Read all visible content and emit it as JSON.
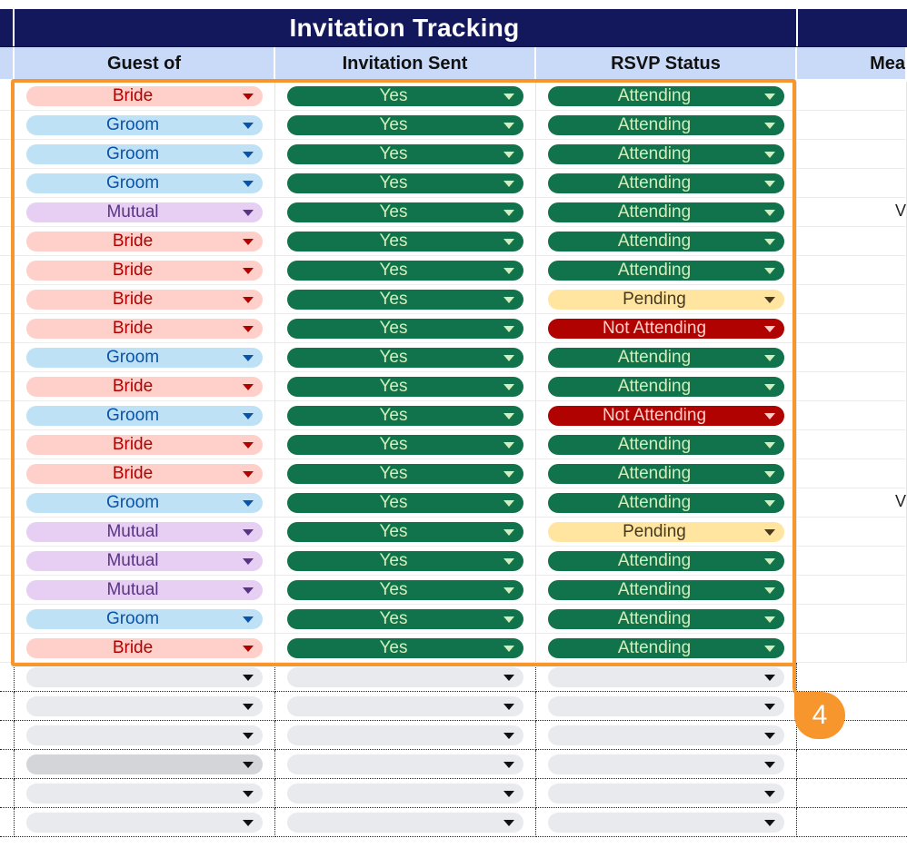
{
  "title": "Invitation Tracking",
  "columns": {
    "guest_of": "Guest of",
    "invitation_sent": "Invitation Sent",
    "rsvp_status": "RSVP Status",
    "meal": "Mea"
  },
  "rows": [
    {
      "guest_of": "Bride",
      "guest_kind": "bride",
      "sent": "Yes",
      "rsvp": "Attending",
      "rsvp_kind": "attending",
      "meal_mark": ""
    },
    {
      "guest_of": "Groom",
      "guest_kind": "groom",
      "sent": "Yes",
      "rsvp": "Attending",
      "rsvp_kind": "attending",
      "meal_mark": ""
    },
    {
      "guest_of": "Groom",
      "guest_kind": "groom",
      "sent": "Yes",
      "rsvp": "Attending",
      "rsvp_kind": "attending",
      "meal_mark": ""
    },
    {
      "guest_of": "Groom",
      "guest_kind": "groom",
      "sent": "Yes",
      "rsvp": "Attending",
      "rsvp_kind": "attending",
      "meal_mark": ""
    },
    {
      "guest_of": "Mutual",
      "guest_kind": "mutual",
      "sent": "Yes",
      "rsvp": "Attending",
      "rsvp_kind": "attending",
      "meal_mark": "V"
    },
    {
      "guest_of": "Bride",
      "guest_kind": "bride",
      "sent": "Yes",
      "rsvp": "Attending",
      "rsvp_kind": "attending",
      "meal_mark": ""
    },
    {
      "guest_of": "Bride",
      "guest_kind": "bride",
      "sent": "Yes",
      "rsvp": "Attending",
      "rsvp_kind": "attending",
      "meal_mark": ""
    },
    {
      "guest_of": "Bride",
      "guest_kind": "bride",
      "sent": "Yes",
      "rsvp": "Pending",
      "rsvp_kind": "pending",
      "meal_mark": ""
    },
    {
      "guest_of": "Bride",
      "guest_kind": "bride",
      "sent": "Yes",
      "rsvp": "Not Attending",
      "rsvp_kind": "notattending",
      "meal_mark": ""
    },
    {
      "guest_of": "Groom",
      "guest_kind": "groom",
      "sent": "Yes",
      "rsvp": "Attending",
      "rsvp_kind": "attending",
      "meal_mark": ""
    },
    {
      "guest_of": "Bride",
      "guest_kind": "bride",
      "sent": "Yes",
      "rsvp": "Attending",
      "rsvp_kind": "attending",
      "meal_mark": ""
    },
    {
      "guest_of": "Groom",
      "guest_kind": "groom",
      "sent": "Yes",
      "rsvp": "Not Attending",
      "rsvp_kind": "notattending",
      "meal_mark": ""
    },
    {
      "guest_of": "Bride",
      "guest_kind": "bride",
      "sent": "Yes",
      "rsvp": "Attending",
      "rsvp_kind": "attending",
      "meal_mark": ""
    },
    {
      "guest_of": "Bride",
      "guest_kind": "bride",
      "sent": "Yes",
      "rsvp": "Attending",
      "rsvp_kind": "attending",
      "meal_mark": ""
    },
    {
      "guest_of": "Groom",
      "guest_kind": "groom",
      "sent": "Yes",
      "rsvp": "Attending",
      "rsvp_kind": "attending",
      "meal_mark": "V"
    },
    {
      "guest_of": "Mutual",
      "guest_kind": "mutual",
      "sent": "Yes",
      "rsvp": "Pending",
      "rsvp_kind": "pending",
      "meal_mark": ""
    },
    {
      "guest_of": "Mutual",
      "guest_kind": "mutual",
      "sent": "Yes",
      "rsvp": "Attending",
      "rsvp_kind": "attending",
      "meal_mark": ""
    },
    {
      "guest_of": "Mutual",
      "guest_kind": "mutual",
      "sent": "Yes",
      "rsvp": "Attending",
      "rsvp_kind": "attending",
      "meal_mark": ""
    },
    {
      "guest_of": "Groom",
      "guest_kind": "groom",
      "sent": "Yes",
      "rsvp": "Attending",
      "rsvp_kind": "attending",
      "meal_mark": ""
    },
    {
      "guest_of": "Bride",
      "guest_kind": "bride",
      "sent": "Yes",
      "rsvp": "Attending",
      "rsvp_kind": "attending",
      "meal_mark": ""
    }
  ],
  "empty_row_count": 6,
  "annotation": {
    "step_number": "4",
    "highlight_color": "#f7962d"
  },
  "colors": {
    "title_band": "#13175c",
    "header": "#c9daf8",
    "bride": "#ffcfc9",
    "groom": "#bfe1f6",
    "mutual": "#e6cff2",
    "yes": "#11734b",
    "pending": "#ffe5a0",
    "not_attending": "#b10202"
  },
  "icons": {
    "dropdown": "chevron-down-icon"
  }
}
